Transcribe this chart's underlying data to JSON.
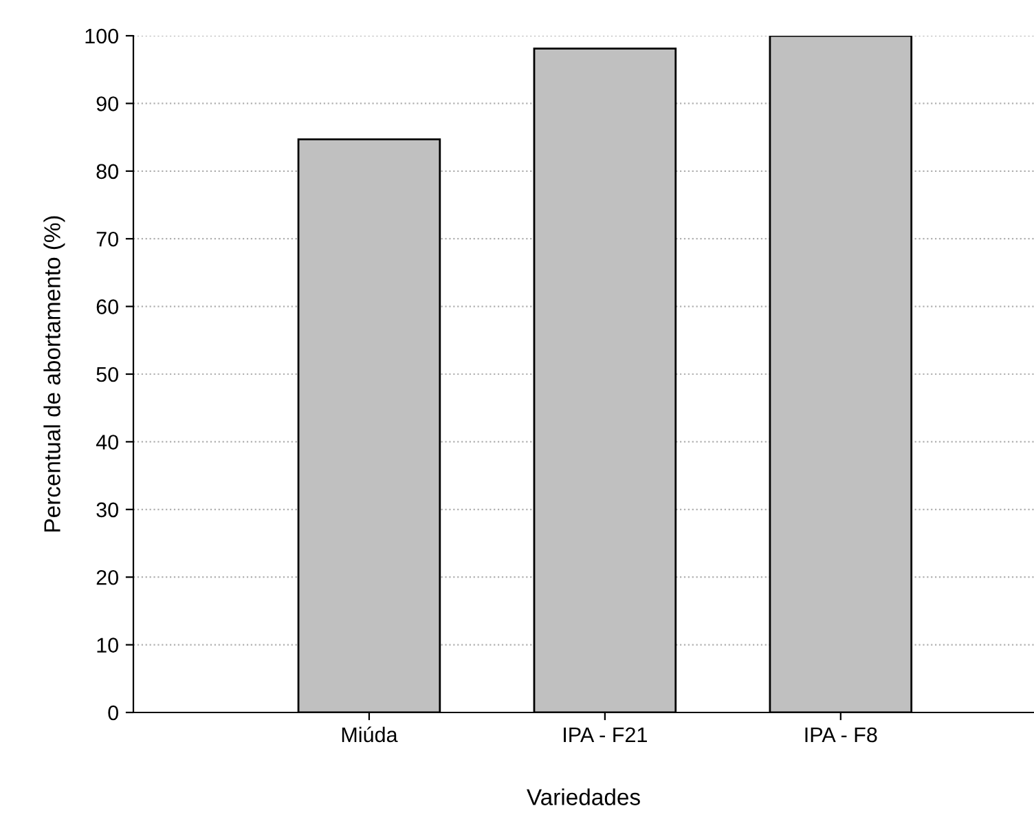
{
  "chart_data": {
    "type": "bar",
    "xlabel": "Variedades",
    "ylabel": "Percentual de abortamento (%)",
    "categories": [
      "Miúda",
      "IPA - F21",
      "IPA - F8"
    ],
    "values": [
      84.7,
      98.1,
      100
    ],
    "color": "#c0c0c0",
    "ylim": [
      0,
      100
    ],
    "yticks": [
      0,
      10,
      20,
      30,
      40,
      50,
      60,
      70,
      80,
      90,
      100
    ],
    "grid": "y"
  }
}
